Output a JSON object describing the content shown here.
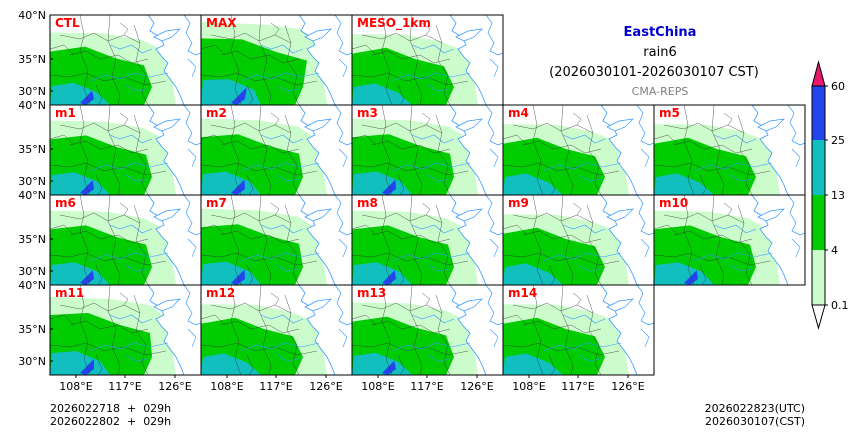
{
  "header": {
    "region": "EastChina",
    "variable": "rain6",
    "period": "(2026030101-2026030107 CST)",
    "system": "CMA-REPS"
  },
  "panels": [
    {
      "label": "CTL",
      "row": 0,
      "col": 0,
      "rain": 0.7,
      "dry": 0.1
    },
    {
      "label": "MAX",
      "row": 0,
      "col": 1,
      "rain": 1.3,
      "dry": 0.0
    },
    {
      "label": "MESO_1km",
      "row": 0,
      "col": 2,
      "rain": 0.6,
      "dry": 0.1
    },
    {
      "label": "m1",
      "row": 1,
      "col": 0,
      "rain": 0.8,
      "dry": 0.2
    },
    {
      "label": "m2",
      "row": 1,
      "col": 1,
      "rain": 0.9,
      "dry": 0.2
    },
    {
      "label": "m3",
      "row": 1,
      "col": 2,
      "rain": 0.9,
      "dry": 0.1
    },
    {
      "label": "m4",
      "row": 1,
      "col": 3,
      "rain": 0.6,
      "dry": 0.3
    },
    {
      "label": "m5",
      "row": 1,
      "col": 4,
      "rain": 0.6,
      "dry": 0.2
    },
    {
      "label": "m6",
      "row": 2,
      "col": 0,
      "rain": 0.8,
      "dry": 0.1
    },
    {
      "label": "m7",
      "row": 2,
      "col": 1,
      "rain": 0.9,
      "dry": 0.2
    },
    {
      "label": "m8",
      "row": 2,
      "col": 2,
      "rain": 0.8,
      "dry": 0.2
    },
    {
      "label": "m9",
      "row": 2,
      "col": 3,
      "rain": 0.6,
      "dry": 0.3
    },
    {
      "label": "m10",
      "row": 2,
      "col": 4,
      "rain": 0.8,
      "dry": 0.1
    },
    {
      "label": "m11",
      "row": 3,
      "col": 0,
      "rain": 1.0,
      "dry": 0.1
    },
    {
      "label": "m12",
      "row": 3,
      "col": 1,
      "rain": 0.6,
      "dry": 0.3
    },
    {
      "label": "m13",
      "row": 3,
      "col": 2,
      "rain": 0.7,
      "dry": 0.2
    },
    {
      "label": "m14",
      "row": 3,
      "col": 3,
      "rain": 0.6,
      "dry": 0.3
    }
  ],
  "axes": {
    "lat_labels": [
      "40°N",
      "35°N",
      "30°N"
    ],
    "lon_labels": [
      "108°E",
      "117°E",
      "126°E"
    ],
    "lon_range": [
      106,
      129
    ],
    "lat_range": [
      28,
      40
    ]
  },
  "colorbar": {
    "levels": [
      "0.1",
      "4",
      "13",
      "25",
      "60"
    ],
    "colors": [
      "#ccfbcc",
      "#00cc00",
      "#11bfbf",
      "#2345ee"
    ],
    "extend_max_color": "#e6196a",
    "extend_min_color": "#ffffff"
  },
  "footer": {
    "init_line1": "2026022718  +  029h",
    "init_line2": "2026022802  +  029h",
    "valid_utc": "2026022823(UTC)",
    "valid_cst": "2026030107(CST)"
  },
  "colors": {
    "title_blue": "#0000cc",
    "label_red": "#ff0000",
    "system_gray": "#808080",
    "river_blue": "#3399ff"
  }
}
